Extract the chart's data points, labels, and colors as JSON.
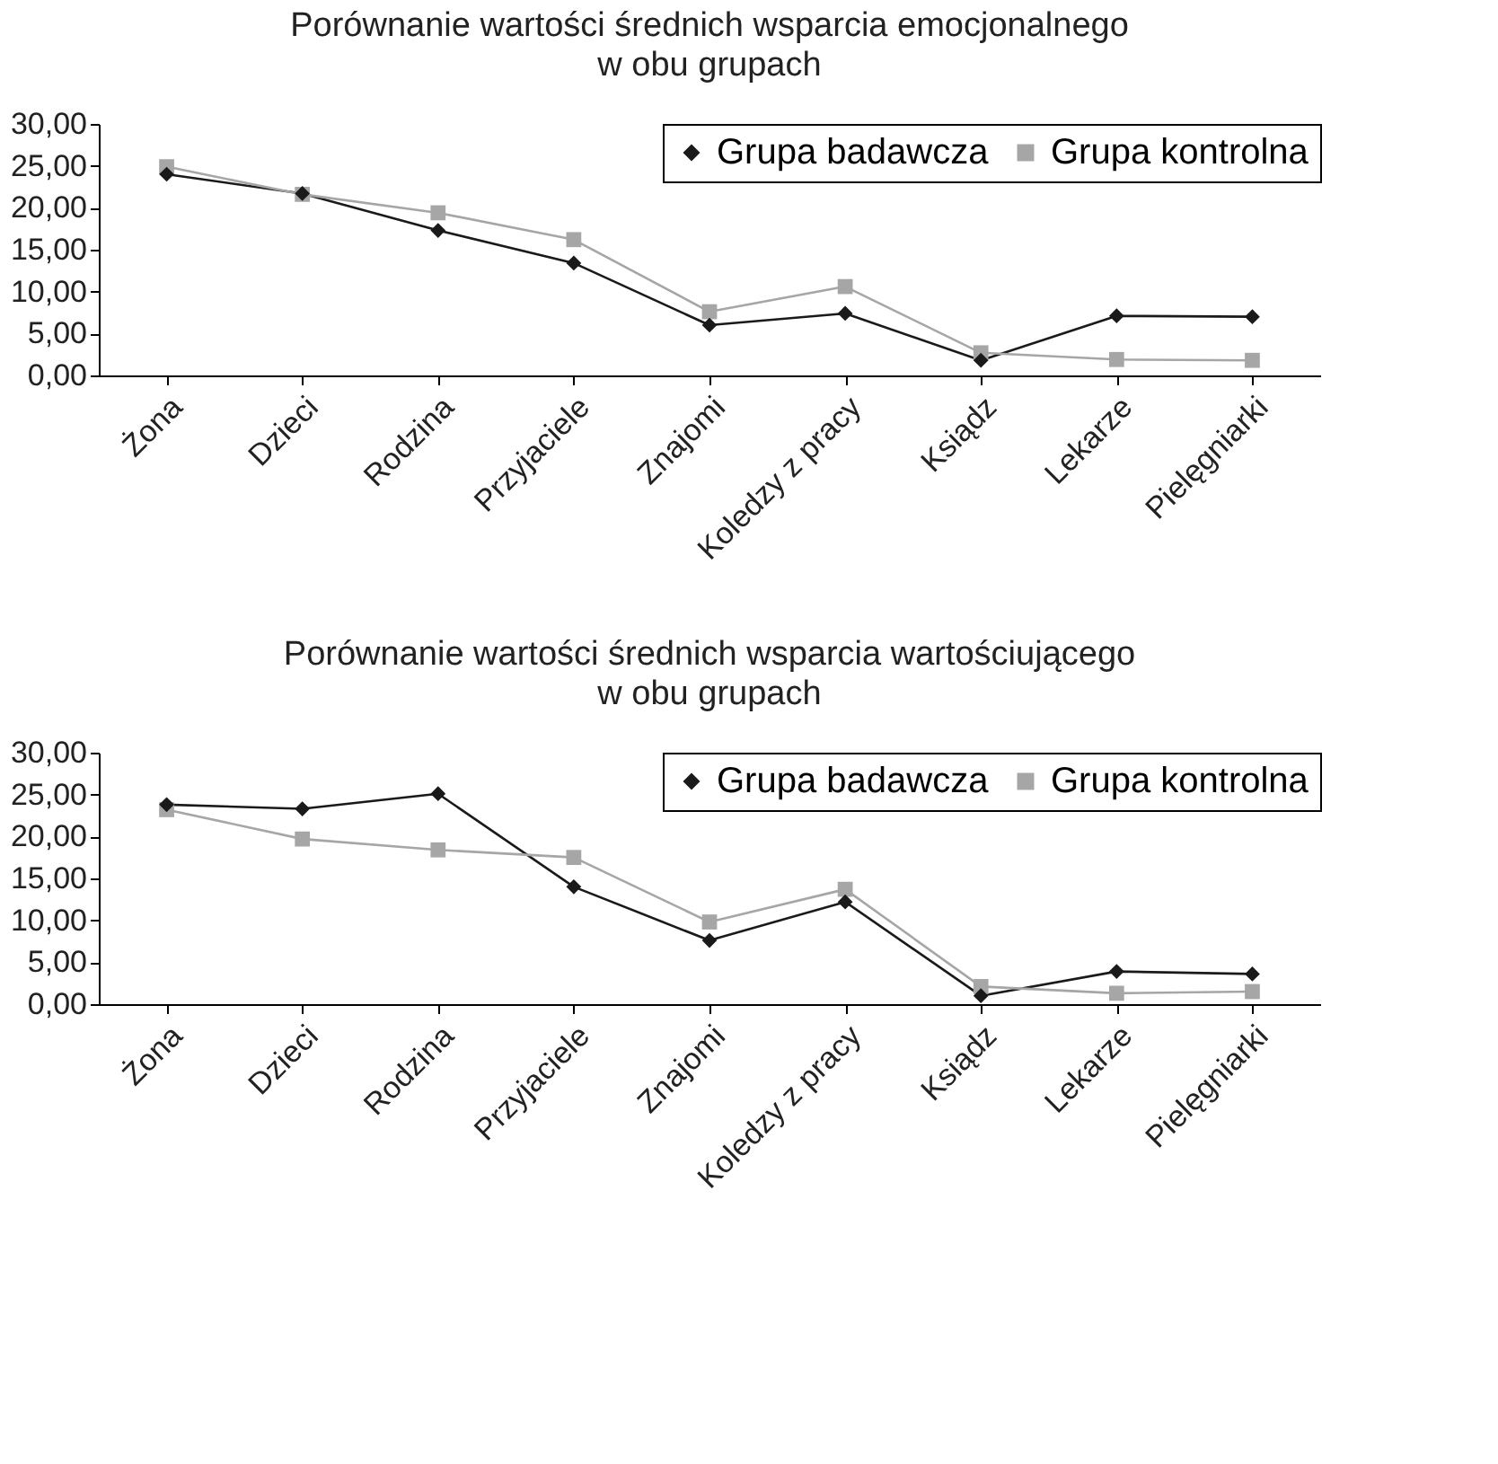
{
  "chart_data": [
    {
      "type": "line",
      "title": "Porównanie wartości średnich wsparcia emocjonalnego",
      "subtitle": "w obu grupach",
      "categories": [
        "Żona",
        "Dzieci",
        "Rodzina",
        "Przyjaciele",
        "Znajomi",
        "Koledzy z pracy",
        "Ksiądz",
        "Lekarze",
        "Pielęgniarki"
      ],
      "series": [
        {
          "name": "Grupa badawcza",
          "color": "#1a1a1a",
          "marker": "diamond",
          "values": [
            24.0,
            21.7,
            17.3,
            13.4,
            6.0,
            7.4,
            1.8,
            7.1,
            7.0
          ]
        },
        {
          "name": "Grupa kontrolna",
          "color": "#a6a6a6",
          "marker": "square",
          "values": [
            24.9,
            21.6,
            19.4,
            16.2,
            7.6,
            10.6,
            2.7,
            1.9,
            1.8
          ]
        }
      ],
      "ylim": [
        0,
        30
      ],
      "yticks": [
        {
          "value": 0,
          "label": "0,00"
        },
        {
          "value": 5,
          "label": "5,00"
        },
        {
          "value": 10,
          "label": "10,00"
        },
        {
          "value": 15,
          "label": "15,00"
        },
        {
          "value": 20,
          "label": "20,00"
        },
        {
          "value": 25,
          "label": "25,00"
        },
        {
          "value": 30,
          "label": "30,00"
        }
      ],
      "legend": "top right",
      "grid": false
    },
    {
      "type": "line",
      "title": "Porównanie wartości średnich wsparcia wartościującego",
      "subtitle": "w obu grupach",
      "categories": [
        "Żona",
        "Dzieci",
        "Rodzina",
        "Przyjaciele",
        "Znajomi",
        "Koledzy z pracy",
        "Ksiądz",
        "Lekarze",
        "Pielęgniarki"
      ],
      "series": [
        {
          "name": "Grupa badawcza",
          "color": "#1a1a1a",
          "marker": "diamond",
          "values": [
            23.8,
            23.3,
            25.1,
            14.0,
            7.6,
            12.2,
            1.0,
            3.9,
            3.6
          ]
        },
        {
          "name": "Grupa kontrolna",
          "color": "#a6a6a6",
          "marker": "square",
          "values": [
            23.2,
            19.7,
            18.4,
            17.5,
            9.8,
            13.7,
            2.1,
            1.3,
            1.5
          ]
        }
      ],
      "ylim": [
        0,
        30
      ],
      "yticks": [
        {
          "value": 0,
          "label": "0,00"
        },
        {
          "value": 5,
          "label": "5,00"
        },
        {
          "value": 10,
          "label": "10,00"
        },
        {
          "value": 15,
          "label": "15,00"
        },
        {
          "value": 20,
          "label": "20,00"
        },
        {
          "value": 25,
          "label": "25,00"
        },
        {
          "value": 30,
          "label": "30,00"
        }
      ],
      "legend": "top right",
      "grid": false
    }
  ]
}
